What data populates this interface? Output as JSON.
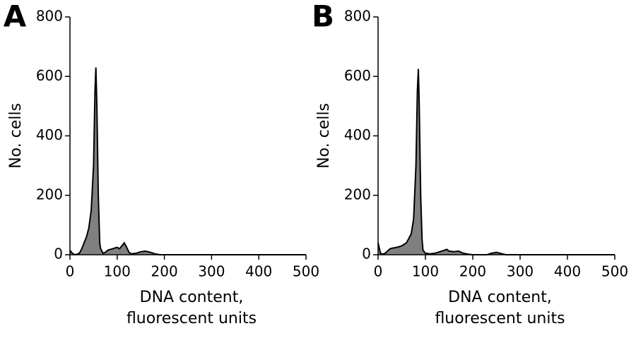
{
  "chart_data": [
    {
      "type": "area",
      "panel": "A",
      "ylabel": "No. cells",
      "xlabel": [
        "DNA content,",
        "fluorescent units"
      ],
      "x": [
        0,
        5,
        10,
        15,
        20,
        25,
        30,
        35,
        40,
        45,
        50,
        53,
        55,
        57,
        60,
        63,
        65,
        70,
        75,
        80,
        90,
        100,
        105,
        110,
        115,
        120,
        125,
        130,
        140,
        150,
        160,
        170,
        180,
        190,
        500
      ],
      "values": [
        15,
        5,
        0,
        2,
        5,
        20,
        40,
        60,
        90,
        150,
        300,
        550,
        630,
        500,
        200,
        40,
        20,
        5,
        8,
        15,
        20,
        25,
        20,
        30,
        40,
        25,
        8,
        3,
        5,
        10,
        12,
        8,
        3,
        0,
        0
      ],
      "color": "#808080",
      "xlim": [
        0,
        500
      ],
      "xticks": [
        0,
        100,
        200,
        300,
        400,
        500
      ],
      "ylim": [
        0,
        800
      ],
      "yticks": [
        0,
        200,
        400,
        600,
        800
      ]
    },
    {
      "type": "area",
      "panel": "B",
      "ylabel": "No. cells",
      "xlabel": [
        "DNA content,",
        "fluorescent units"
      ],
      "x": [
        0,
        3,
        5,
        10,
        15,
        20,
        25,
        30,
        40,
        50,
        60,
        70,
        75,
        80,
        83,
        85,
        87,
        90,
        93,
        95,
        100,
        110,
        120,
        130,
        140,
        145,
        150,
        160,
        170,
        180,
        190,
        200,
        230,
        240,
        250,
        260,
        270,
        500
      ],
      "values": [
        40,
        20,
        5,
        2,
        5,
        12,
        20,
        22,
        25,
        30,
        40,
        70,
        120,
        300,
        550,
        625,
        500,
        200,
        50,
        15,
        5,
        3,
        5,
        10,
        15,
        18,
        12,
        10,
        12,
        5,
        2,
        0,
        0,
        5,
        8,
        4,
        0,
        0
      ],
      "color": "#808080",
      "xlim": [
        0,
        500
      ],
      "xticks": [
        0,
        100,
        200,
        300,
        400,
        500
      ],
      "ylim": [
        0,
        800
      ],
      "yticks": [
        0,
        200,
        400,
        600,
        800
      ]
    }
  ]
}
